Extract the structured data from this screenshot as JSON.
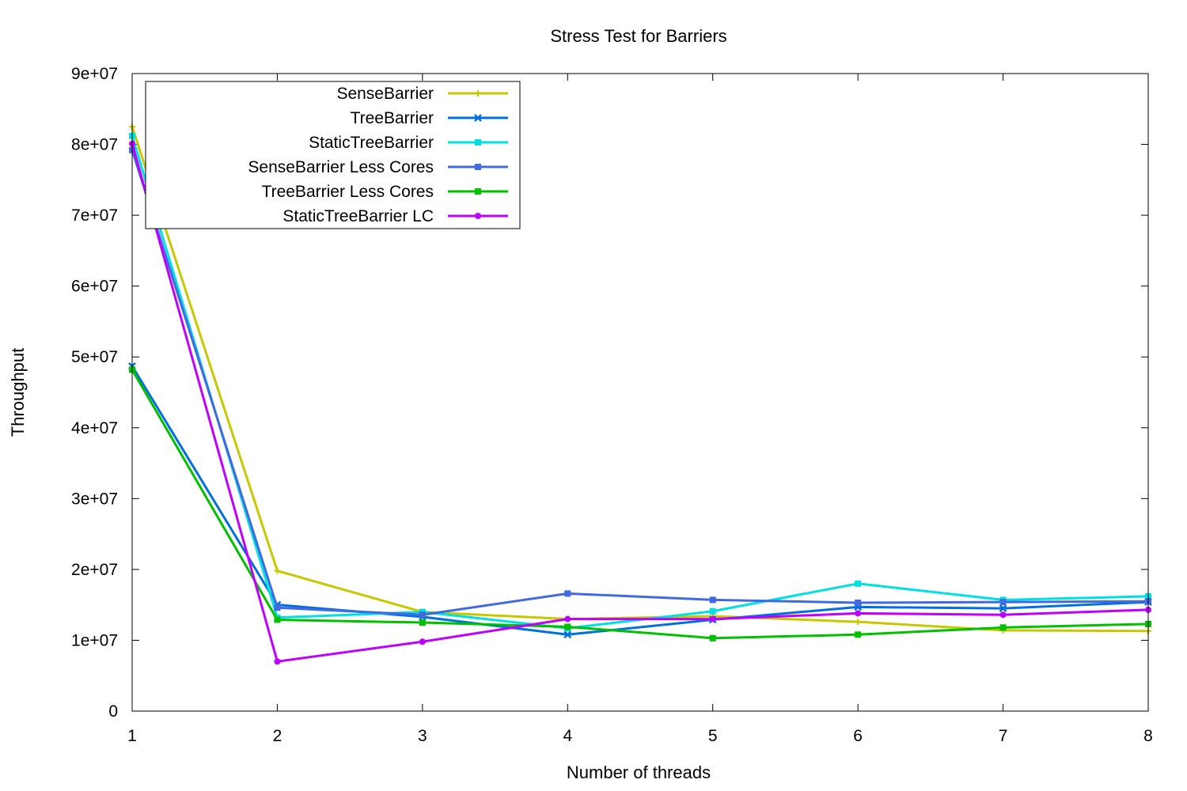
{
  "chart_data": {
    "type": "line",
    "title": "Stress Test for Barriers",
    "xlabel": "Number of threads",
    "ylabel": "Throughput",
    "x": [
      1,
      2,
      3,
      4,
      5,
      6,
      7,
      8
    ],
    "xlim": [
      1,
      8
    ],
    "ylim": [
      0,
      90000000
    ],
    "x_ticks": [
      "1",
      "2",
      "3",
      "4",
      "5",
      "6",
      "7",
      "8"
    ],
    "y_ticks": [
      "0",
      "1e+07",
      "2e+07",
      "3e+07",
      "4e+07",
      "5e+07",
      "6e+07",
      "7e+07",
      "8e+07",
      "9e+07"
    ],
    "grid": false,
    "legend_position": "top-left",
    "series": [
      {
        "name": "SenseBarrier",
        "color": "#c8c800",
        "marker": "plus",
        "values": [
          82500000,
          19800000,
          14000000,
          13000000,
          13400000,
          12600000,
          11400000,
          11300000
        ]
      },
      {
        "name": "TreeBarrier",
        "color": "#0070e0",
        "marker": "cross",
        "values": [
          48700000,
          15000000,
          13300000,
          10800000,
          12900000,
          14700000,
          14500000,
          15400000
        ]
      },
      {
        "name": "StaticTreeBarrier",
        "color": "#00e0e0",
        "marker": "square-filled",
        "values": [
          81200000,
          13200000,
          14000000,
          11700000,
          14100000,
          18000000,
          15700000,
          16200000
        ]
      },
      {
        "name": "SenseBarrier Less Cores",
        "color": "#4169e1",
        "marker": "square-filled",
        "values": [
          79200000,
          14600000,
          13600000,
          16600000,
          15700000,
          15300000,
          15400000,
          15500000
        ]
      },
      {
        "name": "TreeBarrier Less Cores",
        "color": "#00c000",
        "marker": "square-filled",
        "values": [
          48200000,
          12900000,
          12500000,
          11900000,
          10300000,
          10800000,
          11800000,
          12300000
        ]
      },
      {
        "name": "StaticTreeBarrier LC",
        "color": "#c000ff",
        "marker": "circle-filled",
        "values": [
          80100000,
          7000000,
          9800000,
          13000000,
          13000000,
          13800000,
          13600000,
          14300000
        ]
      }
    ]
  }
}
